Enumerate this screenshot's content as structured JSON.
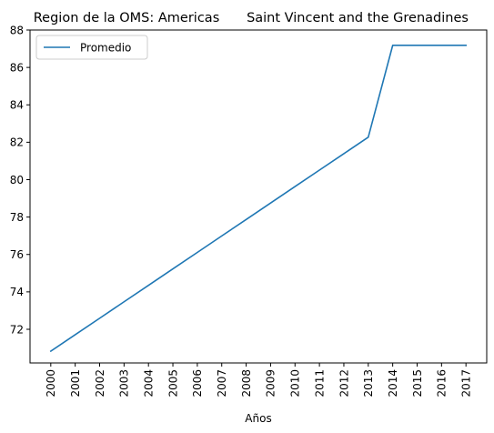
{
  "chart_data": {
    "type": "line",
    "title_left": "Region de la OMS: Americas",
    "title_right": "Saint Vincent and the Grenadines",
    "xlabel": "Años",
    "ylabel": "",
    "x": [
      2000,
      2001,
      2002,
      2003,
      2004,
      2005,
      2006,
      2007,
      2008,
      2009,
      2010,
      2011,
      2012,
      2013,
      2014,
      2015,
      2016,
      2017
    ],
    "x_tick_labels": [
      "2000",
      "2001",
      "2002",
      "2003",
      "2004",
      "2005",
      "2006",
      "2007",
      "2008",
      "2009",
      "2010",
      "2011",
      "2012",
      "2013",
      "2014",
      "2015",
      "2016",
      "2017"
    ],
    "ylim": [
      70.2,
      88
    ],
    "yticks": [
      72,
      74,
      76,
      78,
      80,
      82,
      84,
      86,
      88
    ],
    "grid": false,
    "legend_position": "top-left",
    "series": [
      {
        "name": "Promedio",
        "color": "#1f77b4",
        "values": [
          70.83,
          71.71,
          72.59,
          73.47,
          74.35,
          75.23,
          76.11,
          76.99,
          77.87,
          78.75,
          79.63,
          80.51,
          81.39,
          82.27,
          87.18,
          87.18,
          87.18,
          87.18
        ]
      }
    ]
  }
}
